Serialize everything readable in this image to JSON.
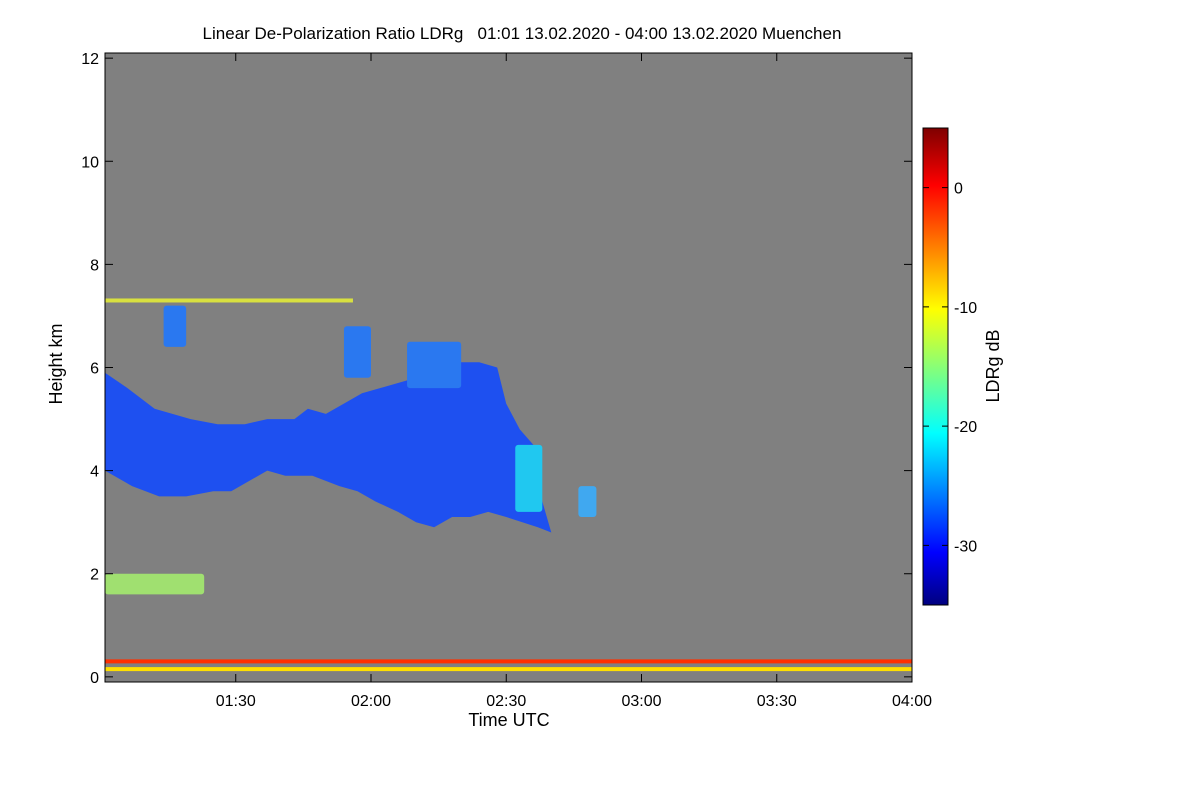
{
  "chart_data": {
    "type": "heatmap",
    "title": "Linear De-Polarization Ratio LDRg   01:01 13.02.2020 - 04:00 13.02.2020 Muenchen",
    "xlabel": "Time UTC",
    "ylabel": "Height km",
    "colorbar_label": "LDRg dB",
    "x_range_minutes": [
      61,
      240
    ],
    "x_ticks": [
      {
        "label": "01:30",
        "minutes": 90
      },
      {
        "label": "02:00",
        "minutes": 120
      },
      {
        "label": "02:30",
        "minutes": 150
      },
      {
        "label": "03:00",
        "minutes": 180
      },
      {
        "label": "03:30",
        "minutes": 210
      },
      {
        "label": "04:00",
        "minutes": 240
      }
    ],
    "ylim": [
      -0.1,
      12.1
    ],
    "y_ticks": [
      {
        "label": "0",
        "value": 0
      },
      {
        "label": "2",
        "value": 2
      },
      {
        "label": "4",
        "value": 4
      },
      {
        "label": "6",
        "value": 6
      },
      {
        "label": "8",
        "value": 8
      },
      {
        "label": "10",
        "value": 10
      },
      {
        "label": "12",
        "value": 12
      }
    ],
    "colorbar_range_db": [
      -35,
      5
    ],
    "colorbar_ticks": [
      {
        "label": "0",
        "value": 0
      },
      {
        "label": "-10",
        "value": -10
      },
      {
        "label": "-20",
        "value": -20
      },
      {
        "label": "-30",
        "value": -30
      }
    ],
    "background_color": "#808080",
    "features": [
      {
        "name": "main-cloud-layer",
        "ldr_db": -30,
        "color": "#1e50f0",
        "top_km": [
          [
            61,
            5.9
          ],
          [
            66,
            5.6
          ],
          [
            72,
            5.2
          ],
          [
            80,
            5.0
          ],
          [
            86,
            4.9
          ],
          [
            92,
            4.9
          ],
          [
            97,
            5.0
          ],
          [
            103,
            5.0
          ],
          [
            106,
            5.2
          ],
          [
            110,
            5.1
          ],
          [
            114,
            5.3
          ],
          [
            118,
            5.5
          ],
          [
            122,
            5.6
          ],
          [
            126,
            5.7
          ],
          [
            130,
            5.8
          ],
          [
            135,
            5.9
          ],
          [
            140,
            6.1
          ],
          [
            144,
            6.1
          ],
          [
            148,
            6.0
          ],
          [
            150,
            5.3
          ],
          [
            153,
            4.8
          ],
          [
            156,
            4.5
          ]
        ],
        "bottom_km": [
          [
            156,
            4.2
          ],
          [
            158,
            3.4
          ],
          [
            160,
            2.8
          ],
          [
            157,
            2.9
          ],
          [
            150,
            3.1
          ],
          [
            146,
            3.2
          ],
          [
            142,
            3.1
          ],
          [
            138,
            3.1
          ],
          [
            134,
            2.9
          ],
          [
            130,
            3.0
          ],
          [
            126,
            3.2
          ],
          [
            121,
            3.4
          ],
          [
            117,
            3.6
          ],
          [
            113,
            3.7
          ],
          [
            107,
            3.9
          ],
          [
            101,
            3.9
          ],
          [
            97,
            4.0
          ],
          [
            93,
            3.8
          ],
          [
            89,
            3.6
          ],
          [
            85,
            3.6
          ],
          [
            79,
            3.5
          ],
          [
            73,
            3.5
          ],
          [
            67,
            3.7
          ],
          [
            63,
            3.9
          ],
          [
            61,
            4.0
          ]
        ]
      },
      {
        "name": "cloud-streak-1",
        "ldr_db": -28,
        "color": "#2a78f0",
        "x": [
          74,
          79
        ],
        "top_km": 7.2,
        "bottom_km": 6.4
      },
      {
        "name": "cloud-streak-2",
        "ldr_db": -28,
        "color": "#2a78f0",
        "x": [
          114,
          120
        ],
        "top_km": 6.8,
        "bottom_km": 5.8
      },
      {
        "name": "cloud-streak-3",
        "ldr_db": -28,
        "color": "#2a78f0",
        "x": [
          128,
          140
        ],
        "top_km": 6.5,
        "bottom_km": 5.6
      },
      {
        "name": "cloud-shaft",
        "ldr_db": -24,
        "color": "#20c8f0",
        "x": [
          152,
          158
        ],
        "top_km": 4.5,
        "bottom_km": 3.2
      },
      {
        "name": "cloud-fragment",
        "ldr_db": -24,
        "color": "#40a8f0",
        "x": [
          166,
          170
        ],
        "top_km": 3.7,
        "bottom_km": 3.1
      },
      {
        "name": "layer-7km",
        "ldr_db": -12,
        "color": "#d8e040",
        "x": [
          61,
          116
        ],
        "height_km": 7.3
      },
      {
        "name": "low-layer",
        "ldr_db": -16,
        "color": "#a0e070",
        "x": [
          61,
          83
        ],
        "top_km": 2.0,
        "bottom_km": 1.6
      },
      {
        "name": "surface-layer",
        "ldr_db": -2,
        "color": "#ff3000",
        "x": [
          61,
          240
        ],
        "height_km": 0.3
      },
      {
        "name": "near-ground-layer",
        "ldr_db": -10,
        "color": "#ffe000",
        "x": [
          61,
          240
        ],
        "height_km": 0.15
      }
    ]
  }
}
